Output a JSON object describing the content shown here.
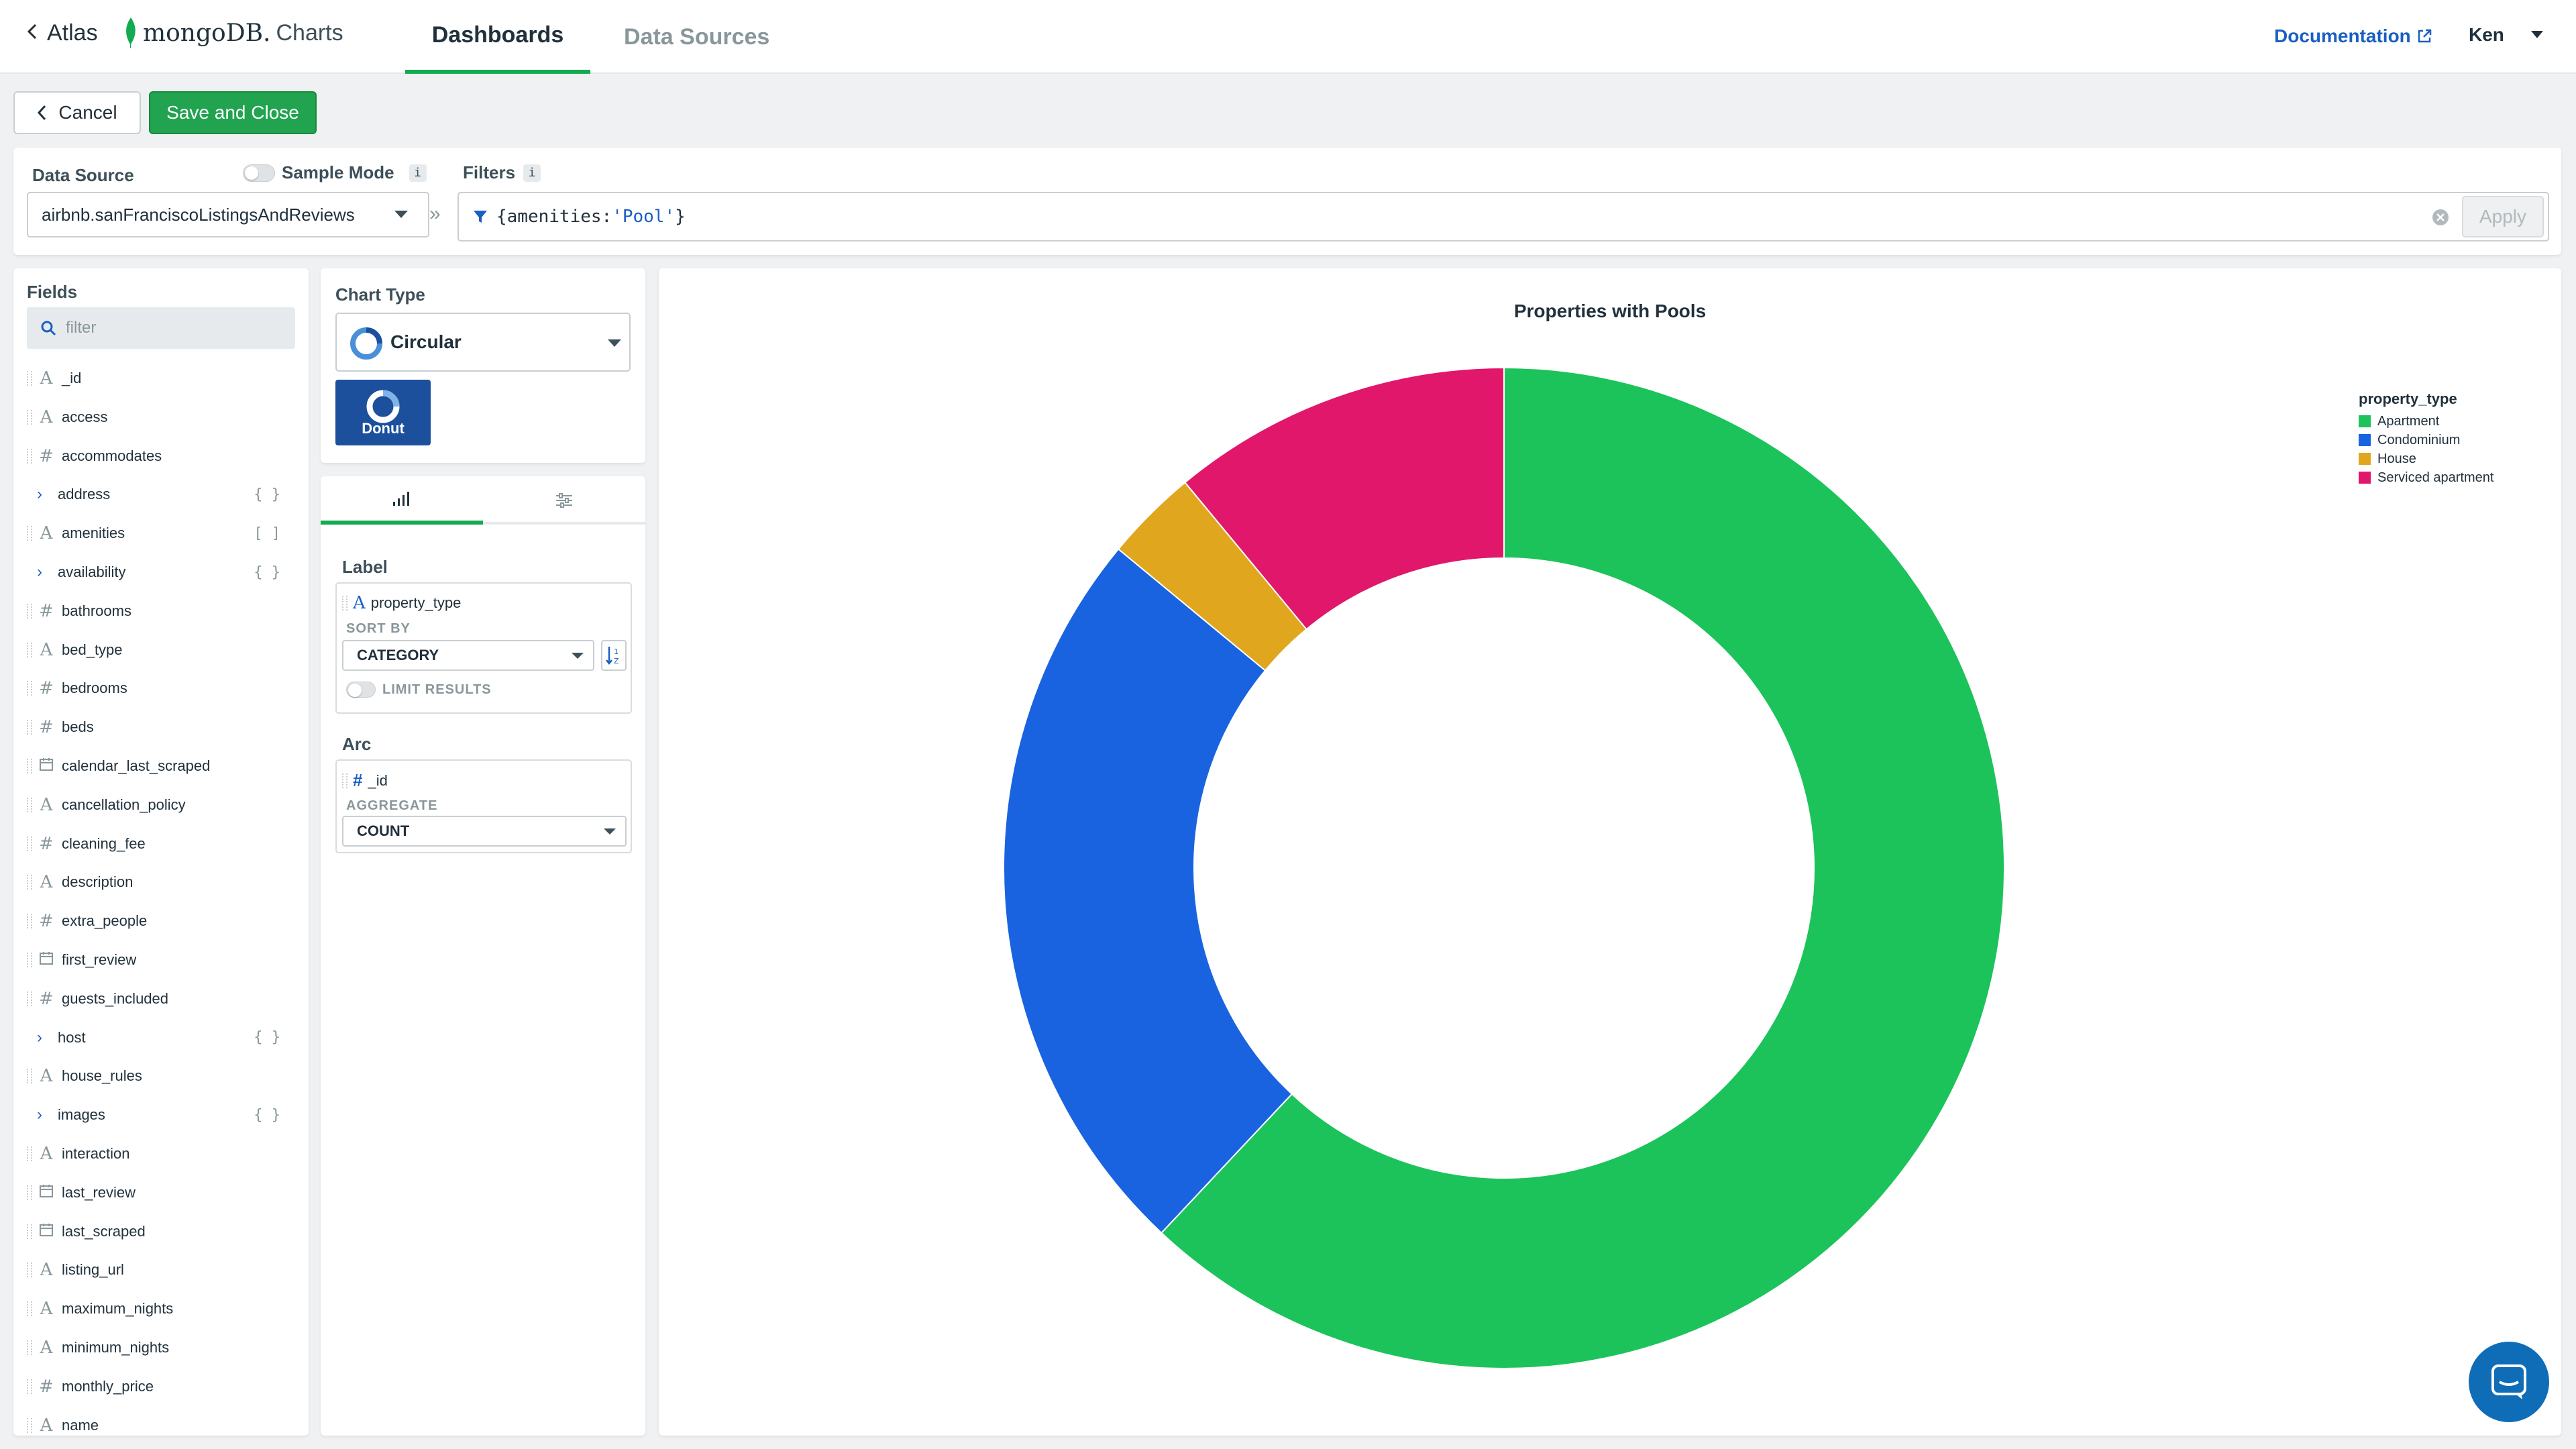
{
  "topbar": {
    "back_label": "Atlas",
    "logo_mongodb": "mongoDB.",
    "logo_charts": "Charts",
    "tabs": [
      {
        "label": "Dashboards",
        "active": true
      },
      {
        "label": "Data Sources",
        "active": false
      }
    ],
    "documentation": "Documentation",
    "user": "Ken"
  },
  "actions": {
    "cancel": "Cancel",
    "save": "Save and Close"
  },
  "data_source": {
    "label": "Data Source",
    "sample_mode": "Sample Mode",
    "sample_mode_on": false,
    "value": "airbnb.sanFranciscoListingsAndReviews",
    "filters_label": "Filters",
    "filter_key": "{amenities: ",
    "filter_value": "'Pool'",
    "filter_close": "}",
    "apply": "Apply",
    "info_glyph": "i",
    "arrow_glyph": "»"
  },
  "fields": {
    "title": "Fields",
    "filter_placeholder": "filter",
    "items": [
      {
        "name": "_id",
        "type": "string"
      },
      {
        "name": "access",
        "type": "string"
      },
      {
        "name": "accommodates",
        "type": "number"
      },
      {
        "name": "address",
        "type": "object"
      },
      {
        "name": "amenities",
        "type": "array"
      },
      {
        "name": "availability",
        "type": "object"
      },
      {
        "name": "bathrooms",
        "type": "number"
      },
      {
        "name": "bed_type",
        "type": "string"
      },
      {
        "name": "bedrooms",
        "type": "number"
      },
      {
        "name": "beds",
        "type": "number"
      },
      {
        "name": "calendar_last_scraped",
        "type": "date"
      },
      {
        "name": "cancellation_policy",
        "type": "string"
      },
      {
        "name": "cleaning_fee",
        "type": "number"
      },
      {
        "name": "description",
        "type": "string"
      },
      {
        "name": "extra_people",
        "type": "number"
      },
      {
        "name": "first_review",
        "type": "date"
      },
      {
        "name": "guests_included",
        "type": "number"
      },
      {
        "name": "host",
        "type": "object"
      },
      {
        "name": "house_rules",
        "type": "string"
      },
      {
        "name": "images",
        "type": "object"
      },
      {
        "name": "interaction",
        "type": "string"
      },
      {
        "name": "last_review",
        "type": "date"
      },
      {
        "name": "last_scraped",
        "type": "date"
      },
      {
        "name": "listing_url",
        "type": "string"
      },
      {
        "name": "maximum_nights",
        "type": "string"
      },
      {
        "name": "minimum_nights",
        "type": "string"
      },
      {
        "name": "monthly_price",
        "type": "number"
      },
      {
        "name": "name",
        "type": "string"
      }
    ],
    "object_glyph": "{ }",
    "array_glyph": "[ ]"
  },
  "chart_type": {
    "label": "Chart Type",
    "selected": "Circular",
    "variant": "Donut"
  },
  "encode": {
    "label_section": "Label",
    "label_field": "property_type",
    "sort_by": "SORT BY",
    "sort_value": "CATEGORY",
    "limit_results": "LIMIT RESULTS",
    "arc_section": "Arc",
    "arc_field": "_id",
    "aggregate": "AGGREGATE",
    "aggregate_value": "COUNT"
  },
  "chart_data": {
    "type": "pie",
    "variant": "donut",
    "title": "Properties with Pools",
    "legend_title": "property_type",
    "legend_position": "top-right",
    "categories": [
      "Apartment",
      "Condominium",
      "House",
      "Serviced apartment"
    ],
    "values": [
      62,
      24,
      3,
      11
    ],
    "colors": [
      "#1cc35a",
      "#1a63e0",
      "#e0a71e",
      "#e0176a"
    ]
  },
  "icons": {
    "back": "chevron-left-icon",
    "external": "external-link-icon",
    "user_caret": "caret-down-icon",
    "filter": "funnel-icon",
    "clear": "clear-circle-icon",
    "search": "search-icon",
    "chat": "chat-bubble-icon"
  }
}
